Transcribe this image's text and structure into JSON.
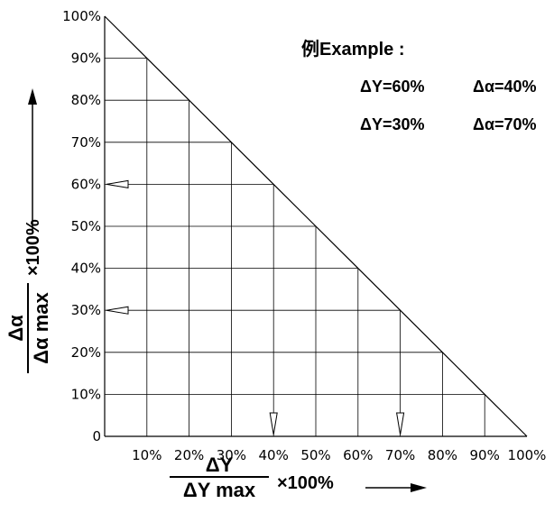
{
  "chart_data": {
    "type": "line",
    "x": [
      0,
      10,
      20,
      30,
      40,
      50,
      60,
      70,
      80,
      90,
      100
    ],
    "values": [
      100,
      90,
      80,
      70,
      60,
      50,
      40,
      30,
      20,
      10,
      0
    ],
    "xlim": [
      0,
      100
    ],
    "ylim": [
      0,
      100
    ],
    "grid": true,
    "x_tick_labels": [
      "10%",
      "20%",
      "30%",
      "40%",
      "50%",
      "60%",
      "70%",
      "80%",
      "90%",
      "100%"
    ],
    "y_tick_labels": [
      "0",
      "10%",
      "20%",
      "30%",
      "40%",
      "50%",
      "60%",
      "70%",
      "80%",
      "90%",
      "100%"
    ],
    "annotations": [
      {
        "x": 40,
        "y": 60
      },
      {
        "x": 70,
        "y": 30
      }
    ]
  },
  "example": {
    "title": "例Example :",
    "line1_dy": "ΔY=60%",
    "line1_da": "Δα=40%",
    "line2_dy": "ΔY=30%",
    "line2_da": "Δα=70%"
  },
  "xaxis": {
    "numerator": "ΔY",
    "denominator": "ΔY max",
    "factor": "×100%"
  },
  "yaxis": {
    "numerator": "Δα",
    "denominator": "Δα max",
    "factor": "×100%"
  }
}
